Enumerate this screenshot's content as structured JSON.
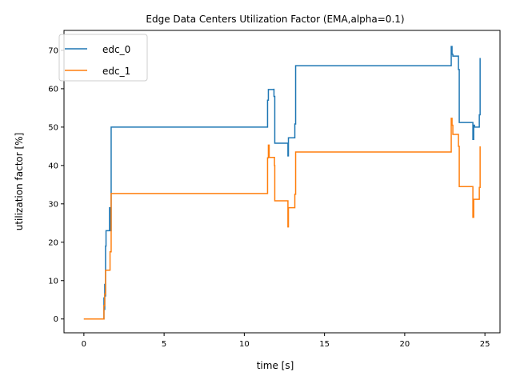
{
  "chart_data": {
    "type": "line",
    "step": true,
    "title": "Edge Data Centers Utilization Factor (EMA,alpha=0.1)",
    "xlabel": "time [s]",
    "ylabel": "utilization factor [%]",
    "xlim": [
      -1.24,
      25.94
    ],
    "ylim": [
      -3.6,
      75.2
    ],
    "xticks": [
      0,
      5,
      10,
      15,
      20,
      25
    ],
    "yticks": [
      0,
      10,
      20,
      30,
      40,
      50,
      60,
      70
    ],
    "grid": false,
    "legend_position": "top-left",
    "series": [
      {
        "name": "edc_0",
        "color": "#1f77b4",
        "points": [
          [
            0.0,
            0.0
          ],
          [
            1.25,
            0.0
          ],
          [
            1.25,
            5.5
          ],
          [
            1.28,
            2.5
          ],
          [
            1.3,
            9.0
          ],
          [
            1.33,
            6.0
          ],
          [
            1.35,
            19.0
          ],
          [
            1.38,
            23.0
          ],
          [
            1.6,
            23.0
          ],
          [
            1.6,
            29.0
          ],
          [
            1.65,
            23.0
          ],
          [
            1.7,
            50.0
          ],
          [
            11.45,
            50.0
          ],
          [
            11.45,
            57.0
          ],
          [
            11.5,
            59.8
          ],
          [
            11.85,
            60.0
          ],
          [
            11.85,
            58.0
          ],
          [
            11.9,
            45.8
          ],
          [
            12.7,
            45.8
          ],
          [
            12.72,
            42.5
          ],
          [
            12.75,
            47.2
          ],
          [
            13.1,
            47.2
          ],
          [
            13.15,
            50.8
          ],
          [
            13.2,
            66.0
          ],
          [
            22.9,
            66.0
          ],
          [
            22.9,
            71.0
          ],
          [
            22.95,
            69.0
          ],
          [
            23.0,
            68.5
          ],
          [
            23.3,
            68.5
          ],
          [
            23.35,
            65.0
          ],
          [
            23.4,
            51.2
          ],
          [
            24.2,
            51.2
          ],
          [
            24.25,
            46.8
          ],
          [
            24.3,
            50.5
          ],
          [
            24.35,
            50.0
          ],
          [
            24.6,
            50.0
          ],
          [
            24.65,
            53.2
          ],
          [
            24.7,
            68.0
          ]
        ]
      },
      {
        "name": "edc_1",
        "color": "#ff7f0e",
        "points": [
          [
            0.0,
            0.0
          ],
          [
            1.25,
            0.0
          ],
          [
            1.25,
            3.5
          ],
          [
            1.3,
            6.5
          ],
          [
            1.35,
            12.7
          ],
          [
            1.6,
            12.7
          ],
          [
            1.63,
            17.5
          ],
          [
            1.7,
            32.7
          ],
          [
            11.45,
            32.7
          ],
          [
            11.45,
            42.0
          ],
          [
            11.5,
            45.3
          ],
          [
            11.55,
            42.1
          ],
          [
            11.85,
            42.1
          ],
          [
            11.88,
            40.0
          ],
          [
            11.9,
            30.8
          ],
          [
            12.7,
            30.8
          ],
          [
            12.72,
            24.0
          ],
          [
            12.75,
            29.0
          ],
          [
            13.1,
            29.0
          ],
          [
            13.15,
            32.5
          ],
          [
            13.2,
            43.5
          ],
          [
            22.9,
            43.5
          ],
          [
            22.9,
            52.3
          ],
          [
            22.95,
            50.5
          ],
          [
            23.0,
            48.1
          ],
          [
            23.3,
            48.1
          ],
          [
            23.35,
            45.0
          ],
          [
            23.4,
            34.5
          ],
          [
            24.2,
            34.5
          ],
          [
            24.25,
            26.5
          ],
          [
            24.3,
            31.2
          ],
          [
            24.6,
            31.2
          ],
          [
            24.65,
            34.3
          ],
          [
            24.7,
            45.0
          ]
        ]
      }
    ]
  }
}
